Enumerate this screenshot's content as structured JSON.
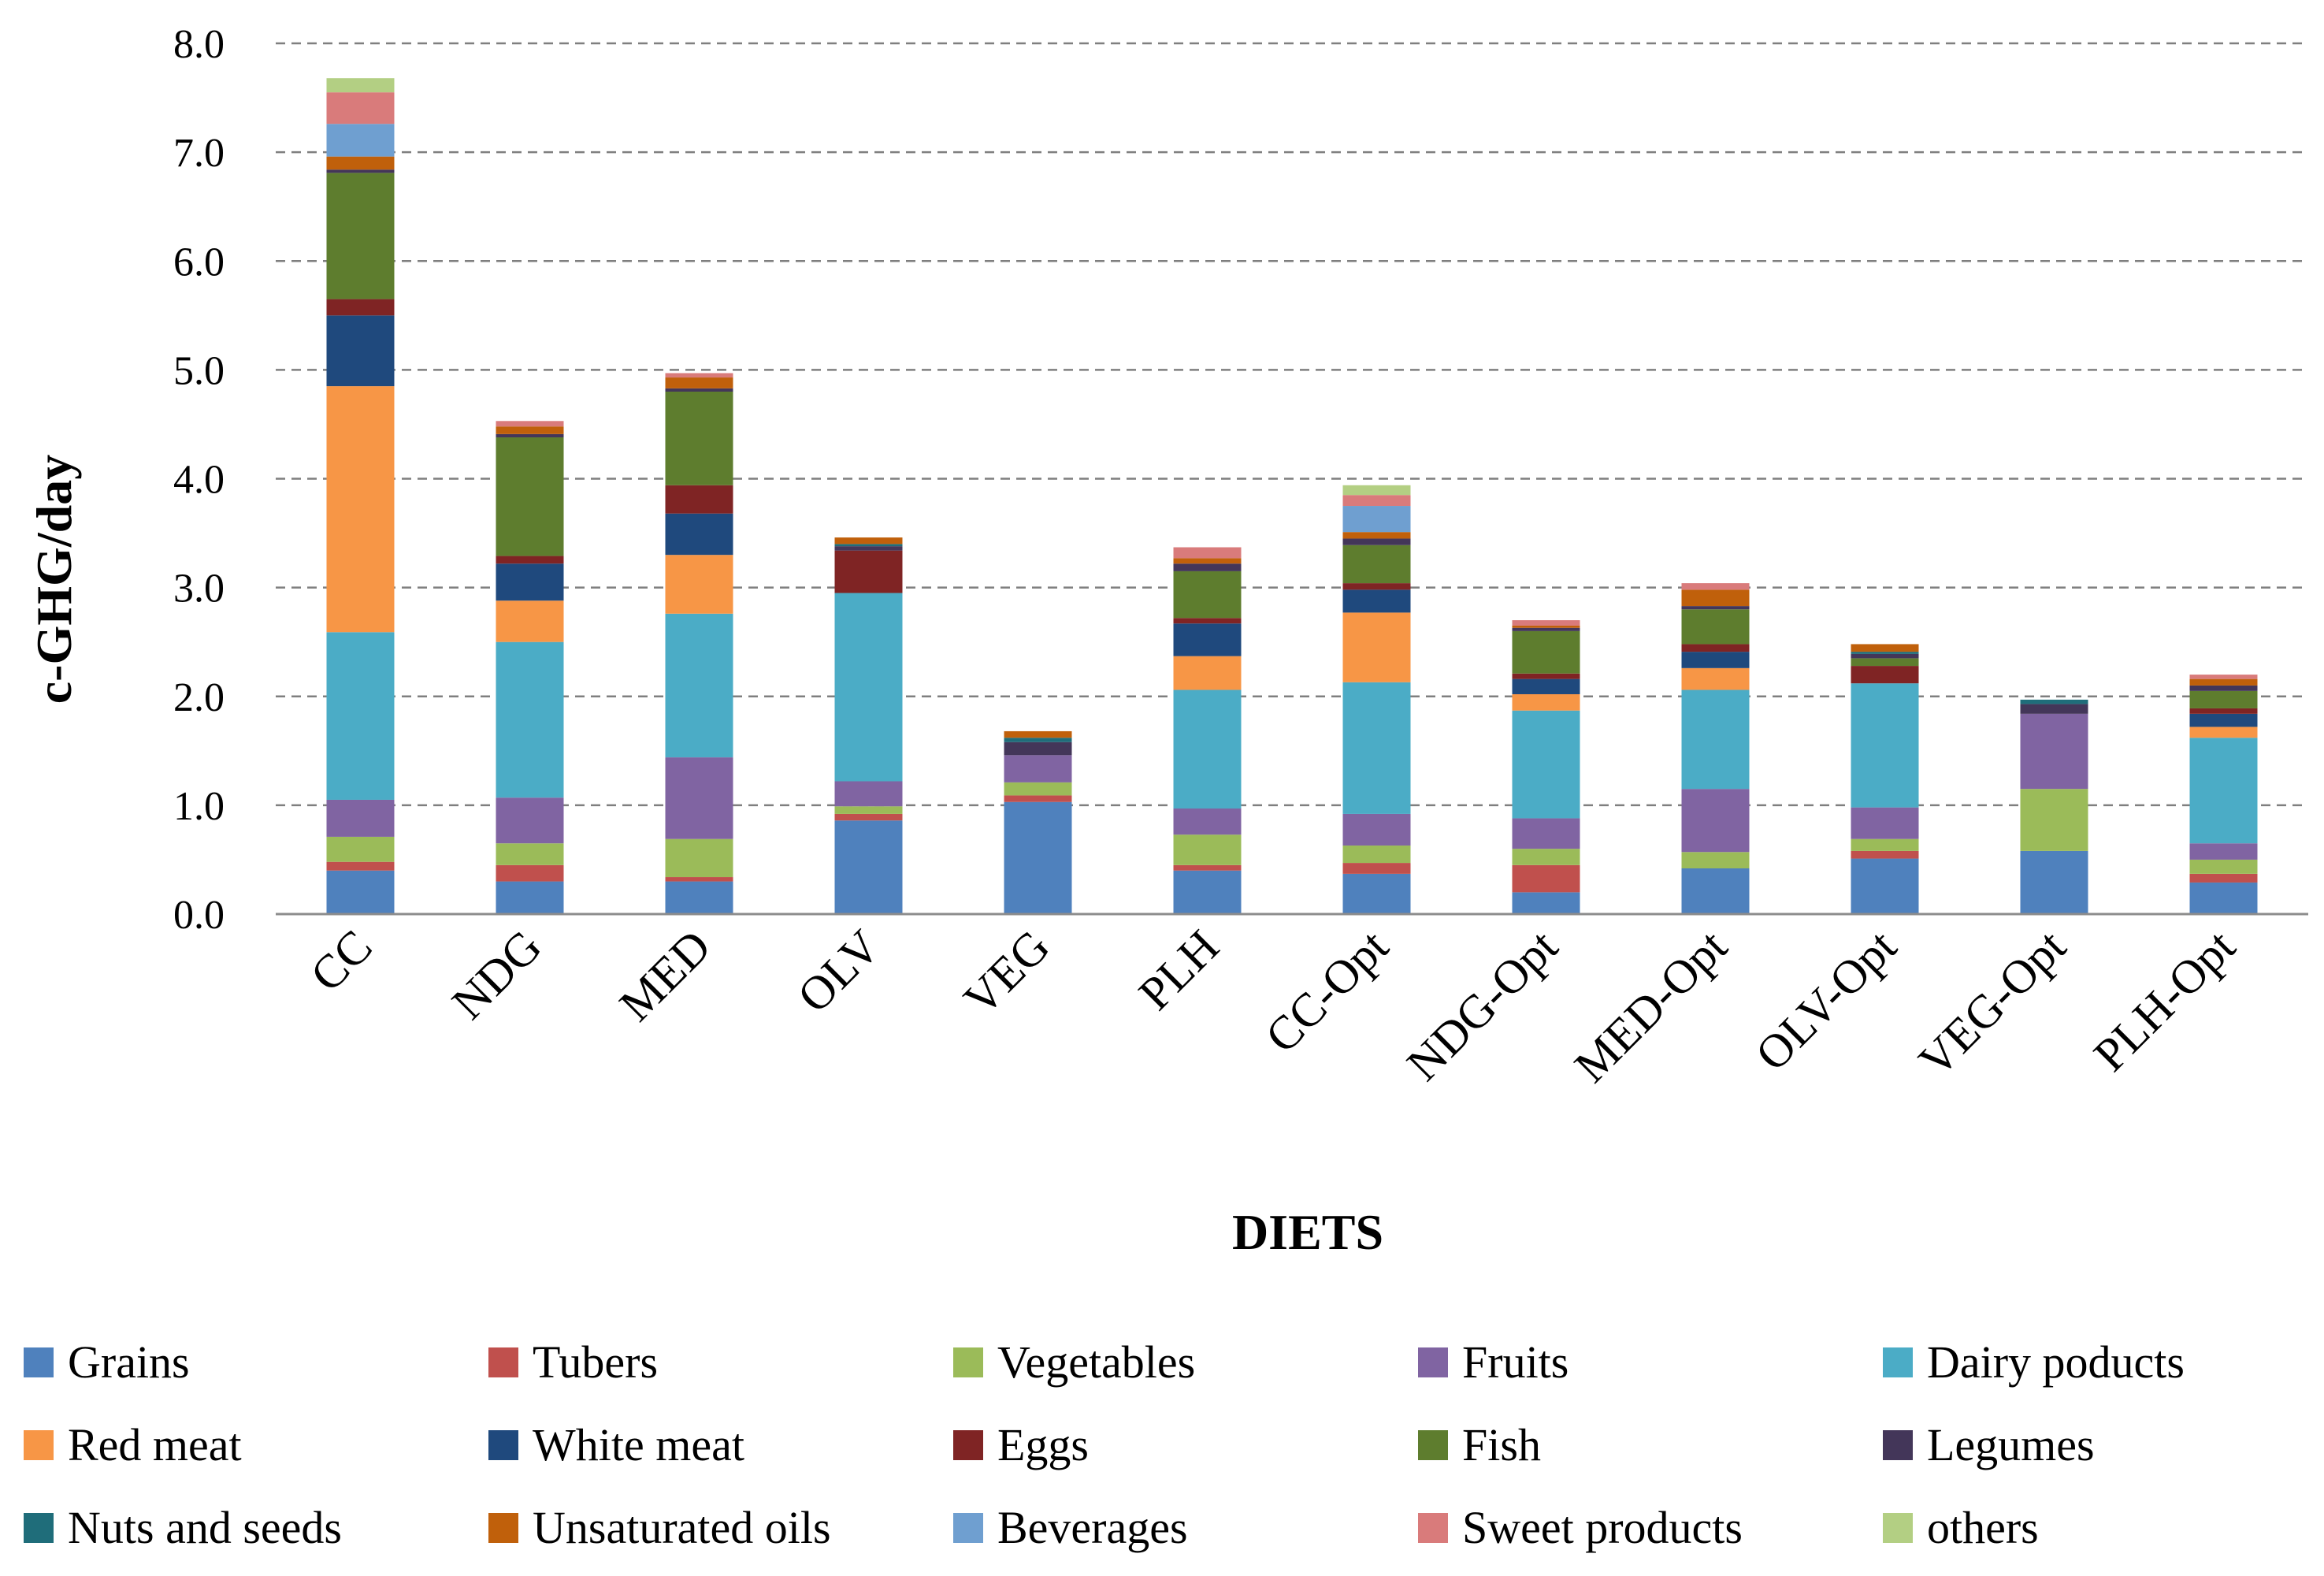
{
  "chart_data": {
    "type": "bar",
    "stacked": true,
    "xlabel": "DIETS",
    "ylabel": "c-GHG/day",
    "ylim": [
      0,
      8
    ],
    "yticks": [
      "0.0",
      "1.0",
      "2.0",
      "3.0",
      "4.0",
      "5.0",
      "6.0",
      "7.0",
      "8.0"
    ],
    "grid": "horizontal dashed",
    "legend_position": "bottom",
    "categories": [
      "CC",
      "NDG",
      "MED",
      "OLV",
      "VEG",
      "PLH",
      "CC-Opt",
      "NDG-Opt",
      "MED-Opt",
      "OLV-Opt",
      "VEG-Opt",
      "PLH-Opt"
    ],
    "series": [
      {
        "name": "Grains",
        "color": "#4f81bd",
        "values": [
          0.4,
          0.3,
          0.3,
          0.86,
          1.03,
          0.4,
          0.37,
          0.2,
          0.42,
          0.51,
          0.58,
          0.29
        ]
      },
      {
        "name": "Tubers",
        "color": "#c0504d",
        "values": [
          0.08,
          0.15,
          0.04,
          0.06,
          0.06,
          0.05,
          0.1,
          0.25,
          0.0,
          0.07,
          0.0,
          0.08
        ]
      },
      {
        "name": "Vegetables",
        "color": "#9bbb59",
        "values": [
          0.23,
          0.2,
          0.35,
          0.07,
          0.12,
          0.28,
          0.16,
          0.15,
          0.15,
          0.11,
          0.57,
          0.13
        ]
      },
      {
        "name": "Fruits",
        "color": "#8064a2",
        "values": [
          0.34,
          0.42,
          0.75,
          0.23,
          0.25,
          0.24,
          0.29,
          0.28,
          0.58,
          0.29,
          0.69,
          0.15
        ]
      },
      {
        "name": "Dairy poducts",
        "color": "#4bacc6",
        "values": [
          1.54,
          1.43,
          1.32,
          1.73,
          0.0,
          1.09,
          1.21,
          0.99,
          0.91,
          1.14,
          0.0,
          0.97
        ]
      },
      {
        "name": "Red meat",
        "color": "#f79646",
        "values": [
          2.26,
          0.38,
          0.54,
          0.0,
          0.0,
          0.31,
          0.64,
          0.15,
          0.2,
          0.0,
          0.0,
          0.1
        ]
      },
      {
        "name": "White meat",
        "color": "#1f497d",
        "values": [
          0.65,
          0.34,
          0.38,
          0.0,
          0.0,
          0.3,
          0.21,
          0.14,
          0.15,
          0.0,
          0.0,
          0.12
        ]
      },
      {
        "name": "Eggs",
        "color": "#7f2424",
        "values": [
          0.15,
          0.07,
          0.26,
          0.39,
          0.0,
          0.05,
          0.06,
          0.05,
          0.07,
          0.16,
          0.0,
          0.05
        ]
      },
      {
        "name": "Fish",
        "color": "#5e7d2e",
        "values": [
          1.16,
          1.09,
          0.86,
          0.0,
          0.0,
          0.43,
          0.35,
          0.39,
          0.32,
          0.07,
          0.0,
          0.16
        ]
      },
      {
        "name": "Legumes",
        "color": "#433659",
        "values": [
          0.03,
          0.03,
          0.03,
          0.04,
          0.12,
          0.07,
          0.06,
          0.03,
          0.03,
          0.04,
          0.09,
          0.05
        ]
      },
      {
        "name": "Nuts and seeds",
        "color": "#1f6d7a",
        "values": [
          0.0,
          0.0,
          0.0,
          0.02,
          0.04,
          0.0,
          0.0,
          0.0,
          0.0,
          0.02,
          0.04,
          0.0
        ]
      },
      {
        "name": "Unsaturated oils",
        "color": "#c0600b",
        "values": [
          0.12,
          0.07,
          0.1,
          0.06,
          0.06,
          0.05,
          0.06,
          0.02,
          0.15,
          0.07,
          0.0,
          0.06
        ]
      },
      {
        "name": "Beverages",
        "color": "#6f9fd0",
        "values": [
          0.3,
          0.0,
          0.0,
          0.0,
          0.0,
          0.0,
          0.24,
          0.0,
          0.0,
          0.0,
          0.0,
          0.0
        ]
      },
      {
        "name": "Sweet products",
        "color": "#d97b7b",
        "values": [
          0.29,
          0.05,
          0.04,
          0.0,
          0.0,
          0.1,
          0.1,
          0.05,
          0.06,
          0.0,
          0.0,
          0.04
        ]
      },
      {
        "name": "others",
        "color": "#b3cf83",
        "values": [
          0.13,
          0.0,
          0.0,
          0.0,
          0.0,
          0.0,
          0.09,
          0.0,
          0.0,
          0.0,
          0.0,
          0.0
        ]
      }
    ]
  }
}
